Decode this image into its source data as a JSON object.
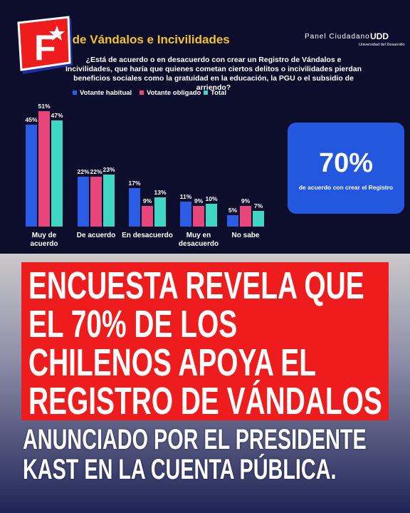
{
  "chart_data": {
    "type": "bar",
    "title": "Registro de Vándalos e Incivilidades",
    "subtitle": "¿Está de acuerdo o en desacuerdo con crear un Registro de Vándalos e Incivilidades, que haría que quienes cometan ciertos delitos o incivilidades pierdan beneficios sociales como la gratuidad en la educación, la PGU o el subsidio de arriendo?",
    "categories": [
      "Muy de acuerdo",
      "De acuerdo",
      "En desacuerdo",
      "Muy en desacuerdo",
      "No sabe"
    ],
    "series": [
      {
        "name": "Votante habitual",
        "color": "#2b5ce6",
        "values": [
          45,
          22,
          17,
          11,
          5
        ],
        "value_labels": [
          "45%",
          "22%",
          "17%",
          "11%",
          "5%"
        ]
      },
      {
        "name": "Votante obligado",
        "color": "#e8457a",
        "values": [
          51,
          22,
          9,
          9,
          9
        ],
        "value_labels": [
          "51%",
          "22%",
          "9%",
          "9%",
          "9%"
        ]
      },
      {
        "name": "Total",
        "color": "#3fd6c4",
        "values": [
          47,
          23,
          13,
          10,
          7
        ],
        "value_labels": [
          "47%",
          "23%",
          "13%",
          "10%",
          "7%"
        ]
      }
    ]
  },
  "callout": {
    "value": "70%",
    "text": "de acuerdo con crear el Registro"
  },
  "brands": {
    "panel": "Panel Ciudadano",
    "udd": "UDD",
    "udd_full": "Universidad del Desarrollo"
  },
  "headline": "ENCUESTA REVELA QUE EL 70% DE LOS CHILENOS APOYA EL REGISTRO DE VÁNDALOS",
  "subheadline": "ANUNCIADO POR EL PRESIDENTE KAST EN LA CUENTA PÚBLICA."
}
